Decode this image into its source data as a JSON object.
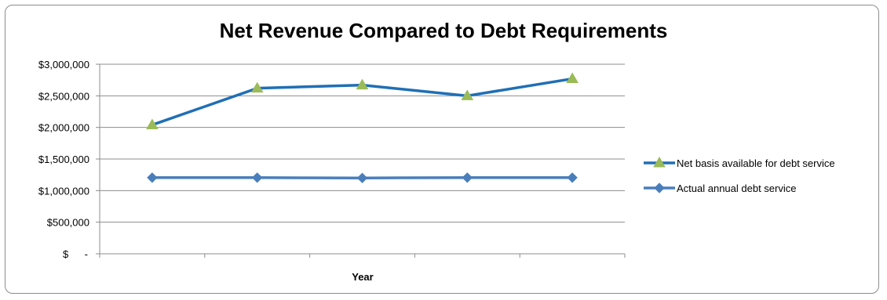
{
  "chart_data": {
    "type": "line",
    "title": "Net Revenue Compared to Debt Requirements",
    "xlabel": "Year",
    "ylabel": "",
    "ylim": [
      0,
      3000000
    ],
    "y_tick_values": [
      0,
      500000,
      1000000,
      1500000,
      2000000,
      2500000,
      3000000
    ],
    "y_tick_labels": [
      "$-",
      "$500,000",
      "$1,000,000",
      "$1,500,000",
      "$2,000,000",
      "$2,500,000",
      "$3,000,000"
    ],
    "x_count": 5,
    "grid": true,
    "legend_position": "right",
    "series": [
      {
        "name": "Net basis available for debt service",
        "values": [
          2040000,
          2620000,
          2670000,
          2500000,
          2770000
        ],
        "line_color": "#1f6fb5",
        "marker": "triangle",
        "marker_color": "#9bbb59"
      },
      {
        "name": "Actual annual debt service",
        "values": [
          1205000,
          1205000,
          1200000,
          1205000,
          1205000
        ],
        "line_color": "#4a7ebb",
        "marker": "diamond",
        "marker_color": "#4a7ebb"
      }
    ]
  }
}
